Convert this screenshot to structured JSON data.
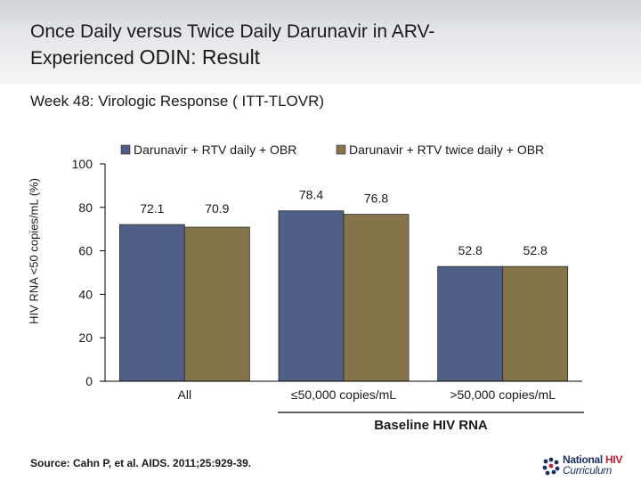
{
  "header": {
    "title_line1": "Once Daily versus Twice Daily Darunavir in ARV-",
    "title_line2_a": "Experienced",
    "title_line2_b": "ODIN: Result"
  },
  "subtitle": "Week 48: Virologic Response ( ITT-TLOVR)",
  "source": "Source: Cahn P, et al. AIDS. 2011;25:929-39.",
  "logo": {
    "word1": "National",
    "word2": "HIV",
    "word3": "Curriculum"
  },
  "colors": {
    "series1": "#4f5f86",
    "series2": "#85744a"
  },
  "chart_data": {
    "type": "bar",
    "categories": [
      "All",
      "≤50,000 copies/mL",
      ">50,000 copies/mL"
    ],
    "series": [
      {
        "name": "Darunavir + RTV daily + OBR",
        "values": [
          72.1,
          78.4,
          52.8
        ],
        "labels": [
          "72.1",
          "78.4",
          "52.8"
        ]
      },
      {
        "name": "Darunavir + RTV twice daily + OBR",
        "values": [
          70.9,
          76.8,
          52.8
        ],
        "labels": [
          "70.9",
          "76.8",
          "52.8"
        ]
      }
    ],
    "xlabel": "Baseline HIV RNA",
    "ylabel": "HIV RNA <50 copies/mL (%)",
    "ylim": [
      0,
      100
    ],
    "yticks": [
      0,
      20,
      40,
      60,
      80,
      100
    ],
    "ytick_labels": [
      "0",
      "20",
      "40",
      "60",
      "80",
      "100"
    ],
    "legend_position": "top"
  }
}
